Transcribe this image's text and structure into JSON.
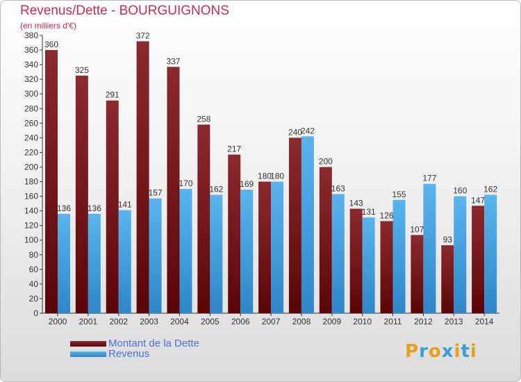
{
  "title": "Revenus/Dette - BOURGUIGNONS",
  "subtitle": "(en milliers d'€)",
  "logo_text": "Proxiti",
  "colors": {
    "dette": "#7a1518",
    "revenus": "#4aa5e6",
    "title": "#c0314b",
    "legend_text": "#4a6fe8"
  },
  "chart_data": {
    "type": "bar",
    "categories": [
      "2000",
      "2001",
      "2002",
      "2003",
      "2004",
      "2005",
      "2006",
      "2007",
      "2008",
      "2009",
      "2010",
      "2011",
      "2012",
      "2013",
      "2014"
    ],
    "series": [
      {
        "name": "Montant de la Dette",
        "values": [
          360,
          325,
          291,
          372,
          337,
          258,
          217,
          180,
          240,
          200,
          143,
          126,
          107,
          93,
          147
        ]
      },
      {
        "name": "Revenus",
        "values": [
          136,
          136,
          141,
          157,
          170,
          162,
          169,
          180,
          242,
          163,
          131,
          155,
          177,
          160,
          162
        ]
      }
    ],
    "ylim": [
      0,
      380
    ],
    "ytick_step": 20,
    "grid": false,
    "legend_position": "bottom-left"
  }
}
